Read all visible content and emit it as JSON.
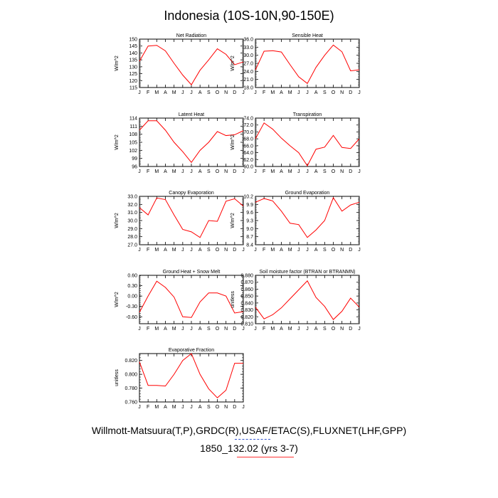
{
  "title": "Indonesia (10S-10N,90-150E)",
  "footer": {
    "line1": "Willmott-Matsuura(T,P),GRDC(R),USAF/ETAC(S),FLUXNET(LHF,GPP)",
    "line2": "1850_132.02 (yrs 3-7)"
  },
  "colors": {
    "series": "#ff0000",
    "axis": "#000000",
    "underline_blue": "#3355cc",
    "underline_red": "#ff3333"
  },
  "chart_data": [
    {
      "type": "line",
      "title": "Net Radiation",
      "ylabel": "W/m^2",
      "categories": [
        "J",
        "F",
        "M",
        "A",
        "M",
        "J",
        "J",
        "A",
        "S",
        "O",
        "N",
        "D",
        "J"
      ],
      "ylim": [
        115,
        150
      ],
      "yticks": [
        "150",
        "145",
        "140",
        "135",
        "130",
        "125",
        "120",
        "115"
      ],
      "values": [
        134,
        145,
        145.5,
        141.5,
        132.5,
        124,
        117,
        127.5,
        135,
        143,
        139,
        131.5,
        133.5
      ]
    },
    {
      "type": "line",
      "title": "Sensible Heat",
      "ylabel": "W/m^2",
      "categories": [
        "J",
        "F",
        "M",
        "A",
        "M",
        "J",
        "J",
        "A",
        "S",
        "O",
        "N",
        "D",
        "J"
      ],
      "ylim": [
        18,
        36
      ],
      "yticks": [
        "36.0",
        "33.0",
        "30.0",
        "27.0",
        "24.0",
        "21.0",
        "18.0"
      ],
      "values": [
        24.5,
        31.5,
        31.7,
        31.2,
        26.5,
        22,
        19.5,
        25.5,
        30,
        33.8,
        31.3,
        24.2,
        24.6
      ]
    },
    {
      "type": "line",
      "title": "Latent Heat",
      "ylabel": "W/m^2",
      "categories": [
        "J",
        "F",
        "M",
        "A",
        "M",
        "J",
        "J",
        "A",
        "S",
        "O",
        "N",
        "D",
        "J"
      ],
      "ylim": [
        96,
        114
      ],
      "yticks": [
        "114",
        "111",
        "108",
        "105",
        "102",
        "99",
        "96"
      ],
      "values": [
        109.5,
        113,
        113,
        109.5,
        105,
        101.5,
        97.5,
        102,
        105,
        109,
        107.5,
        107.8,
        109.3
      ]
    },
    {
      "type": "line",
      "title": "Transpiration",
      "ylabel": "W/m^2",
      "categories": [
        "J",
        "F",
        "M",
        "A",
        "M",
        "J",
        "J",
        "A",
        "S",
        "O",
        "N",
        "D",
        "J"
      ],
      "ylim": [
        60,
        74
      ],
      "yticks": [
        "74.0",
        "72.0",
        "70.0",
        "68.0",
        "66.0",
        "64.0",
        "62.0",
        "60.0"
      ],
      "values": [
        68,
        72.6,
        70.8,
        68.2,
        66,
        64,
        60.2,
        65,
        65.6,
        69,
        65.5,
        65.2,
        68
      ]
    },
    {
      "type": "line",
      "title": "Canopy Evaporation",
      "ylabel": "W/m^2",
      "categories": [
        "J",
        "F",
        "M",
        "A",
        "M",
        "J",
        "J",
        "A",
        "S",
        "O",
        "N",
        "D",
        "J"
      ],
      "ylim": [
        27,
        33
      ],
      "yticks": [
        "33.0",
        "32.0",
        "31.0",
        "30.0",
        "29.0",
        "28.0",
        "27.0"
      ],
      "values": [
        31.6,
        30.7,
        32.8,
        32.6,
        30.7,
        28.9,
        28.6,
        27.9,
        30,
        29.9,
        32.4,
        32.7,
        31.8
      ]
    },
    {
      "type": "line",
      "title": "Ground Evaporation",
      "ylabel": "W/m^2",
      "categories": [
        "J",
        "F",
        "M",
        "A",
        "M",
        "J",
        "J",
        "A",
        "S",
        "O",
        "N",
        "D",
        "J"
      ],
      "ylim": [
        8.4,
        10.2
      ],
      "yticks": [
        "10.2",
        "9.9",
        "9.6",
        "9.3",
        "9.0",
        "8.7",
        "8.4"
      ],
      "values": [
        9.98,
        10.12,
        10.03,
        9.65,
        9.2,
        9.15,
        8.67,
        8.95,
        9.3,
        10.15,
        9.65,
        9.88,
        9.98
      ]
    },
    {
      "type": "line",
      "title": "Ground Heat + Snow Melt",
      "ylabel": "W/m^2",
      "categories": [
        "J",
        "F",
        "M",
        "A",
        "M",
        "J",
        "J",
        "A",
        "S",
        "O",
        "N",
        "D",
        "J"
      ],
      "ylim": [
        -0.8,
        0.6
      ],
      "yticks": [
        "0.60",
        "0.30",
        "0.00",
        "-0.30",
        "-0.60"
      ],
      "values": [
        -0.47,
        0,
        0.43,
        0.25,
        -0.03,
        -0.6,
        -0.62,
        -0.17,
        0.09,
        0.09,
        0,
        -0.49,
        -0.45
      ]
    },
    {
      "type": "line",
      "title": "Soil moisture factor (BTRAN or BTRANMN)",
      "ylabel": "unitless",
      "categories": [
        "J",
        "F",
        "M",
        "A",
        "M",
        "J",
        "J",
        "A",
        "S",
        "O",
        "N",
        "D",
        "J"
      ],
      "ylim": [
        0.81,
        0.88
      ],
      "yticks": [
        "0.880",
        "0.870",
        "0.860",
        "0.850",
        "0.840",
        "0.830",
        "0.820",
        "0.810"
      ],
      "values": [
        0.834,
        0.817,
        0.823,
        0.833,
        0.846,
        0.859,
        0.872,
        0.848,
        0.835,
        0.816,
        0.828,
        0.847,
        0.834
      ]
    },
    {
      "type": "line",
      "title": "Evaporative Fraction",
      "ylabel": "unitless",
      "categories": [
        "J",
        "F",
        "M",
        "A",
        "M",
        "J",
        "J",
        "A",
        "S",
        "O",
        "N",
        "D",
        "J"
      ],
      "ylim": [
        0.76,
        0.83
      ],
      "yticks": [
        "0.820",
        "0.800",
        "0.780",
        "0.760"
      ],
      "ytickvals": [
        0.82,
        0.8,
        0.78,
        0.76
      ],
      "values": [
        0.818,
        0.784,
        0.784,
        0.783,
        0.8,
        0.82,
        0.83,
        0.8,
        0.779,
        0.766,
        0.777,
        0.816,
        0.816
      ]
    }
  ]
}
